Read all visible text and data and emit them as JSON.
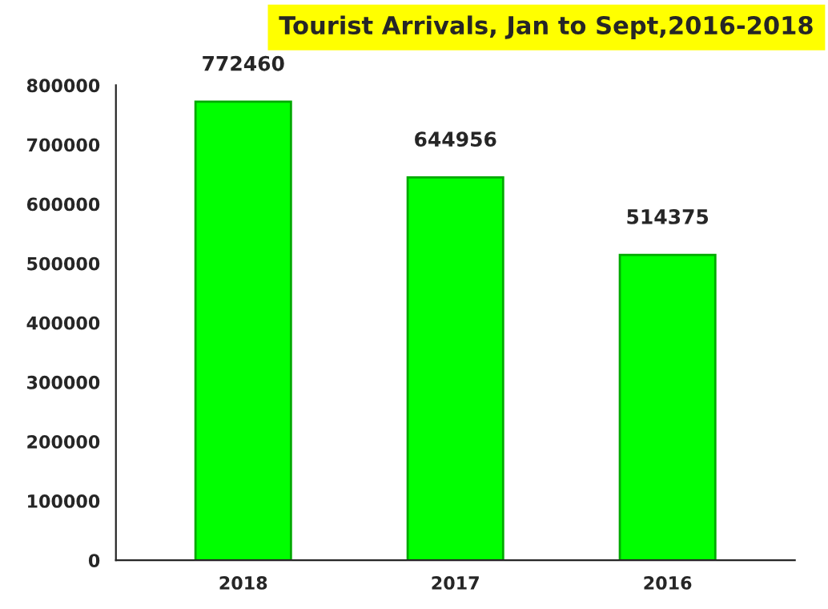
{
  "chart_data": {
    "type": "bar",
    "title": "Tourist Arrivals, Jan to Sept,2016-2018",
    "categories": [
      "2018",
      "2017",
      "2016"
    ],
    "values": [
      772460,
      644956,
      514375
    ],
    "color": "#00ff00",
    "ylim": [
      0,
      800000
    ],
    "yticks": [
      0,
      100000,
      200000,
      300000,
      400000,
      500000,
      600000,
      700000,
      800000
    ],
    "data_labels": true,
    "grid": false
  }
}
